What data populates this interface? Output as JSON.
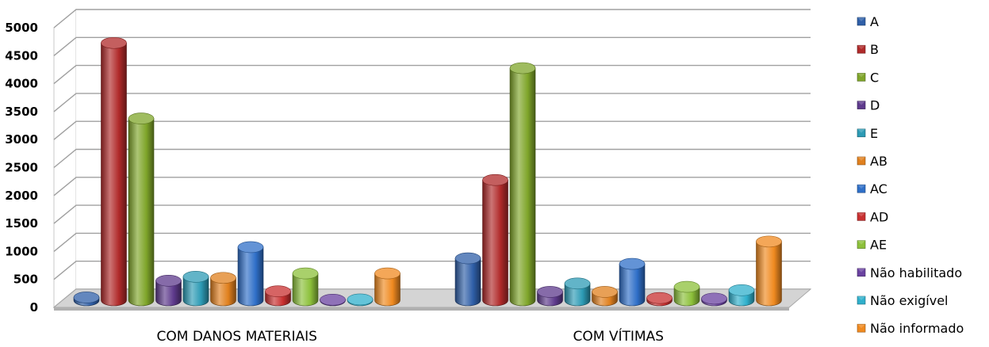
{
  "chart_data": {
    "type": "bar",
    "title": "",
    "xlabel": "",
    "ylabel": "",
    "ylim": [
      0,
      5000
    ],
    "y_ticks": [
      "0",
      "500",
      "1000",
      "1500",
      "2000",
      "2500",
      "3000",
      "3500",
      "4000",
      "4500",
      "5000"
    ],
    "grid": true,
    "legend_position": "right",
    "categories": [
      "COM DANOS MATERIAIS",
      "COM VÍTIMAS"
    ],
    "series": [
      {
        "name": "A",
        "color": "#2f5fa8",
        "values": [
          50,
          750
        ]
      },
      {
        "name": "B",
        "color": "#b02a2a",
        "values": [
          4600,
          2150
        ]
      },
      {
        "name": "C",
        "color": "#7fa52a",
        "values": [
          3250,
          4150
        ]
      },
      {
        "name": "D",
        "color": "#5e3a8c",
        "values": [
          350,
          150
        ]
      },
      {
        "name": "E",
        "color": "#2d9bb5",
        "values": [
          420,
          300
        ]
      },
      {
        "name": "AB",
        "color": "#e0801e",
        "values": [
          400,
          150
        ]
      },
      {
        "name": "AC",
        "color": "#2f6fc8",
        "values": [
          950,
          650
        ]
      },
      {
        "name": "AD",
        "color": "#c83030",
        "values": [
          160,
          40
        ]
      },
      {
        "name": "AE",
        "color": "#8cc03a",
        "values": [
          480,
          240
        ]
      },
      {
        "name": "Não habilitado",
        "color": "#6a42a0",
        "values": [
          10,
          30
        ]
      },
      {
        "name": "Não exigível",
        "color": "#30b0cc",
        "values": [
          15,
          180
        ]
      },
      {
        "name": "Não informado",
        "color": "#f08a20",
        "values": [
          480,
          1050
        ]
      }
    ]
  }
}
